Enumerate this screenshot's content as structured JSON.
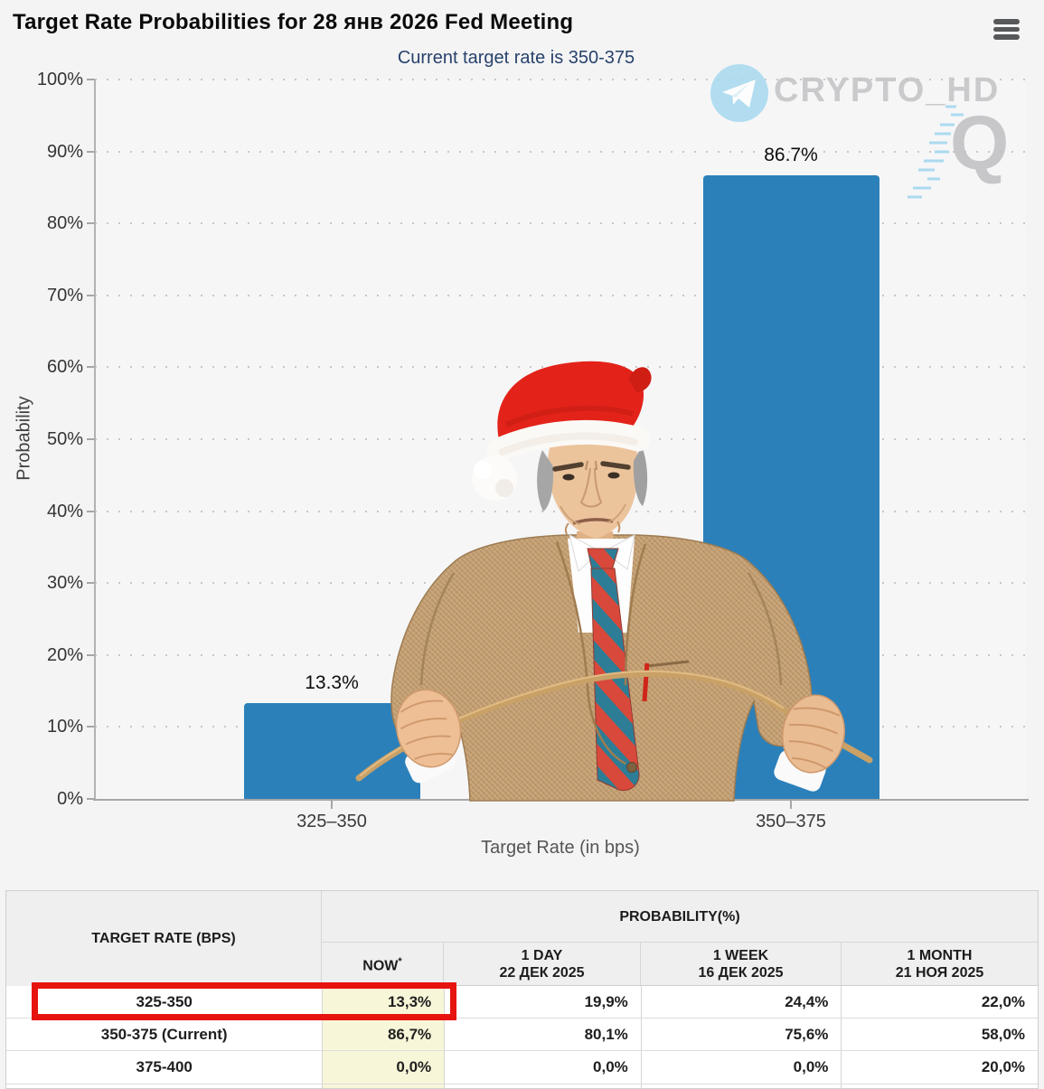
{
  "header": {
    "title": "Target Rate Probabilities for 28 янв 2026 Fed Meeting",
    "menu_icon": "hamburger-icon"
  },
  "chart_data": {
    "type": "bar",
    "title": "Target Rate Probabilities for 28 янв 2026 Fed Meeting",
    "subtitle": "Current target rate is 350-375",
    "categories": [
      "325–350",
      "350–375"
    ],
    "values": [
      13.3,
      86.7
    ],
    "bar_labels": [
      "13.3%",
      "86.7%"
    ],
    "xlabel": "Target Rate (in bps)",
    "ylabel": "Probability",
    "ylim": [
      0,
      100
    ],
    "ytick_step": 10,
    "ytick_suffix": "%",
    "grid": "dotted-horizontal",
    "legend": "none",
    "bar_color": "#2b80ba"
  },
  "watermark": {
    "telegram_icon": "telegram-icon",
    "text": "CRYPTO_HD",
    "q_text": "Q",
    "accent_color": "#a5d8ef"
  },
  "overlay_image": {
    "description": "Jerome Powell wearing a Santa hat, stern face, tan tweed suit, red and teal striped tie, bending a wooden switch with both fists"
  },
  "table": {
    "col1_header": "TARGET RATE (BPS)",
    "group_header": "PROBABILITY(%)",
    "columns": [
      {
        "label": "NOW",
        "sup": "*",
        "sub": ""
      },
      {
        "label": "1 DAY",
        "sub": "22 ДЕК 2025"
      },
      {
        "label": "1 WEEK",
        "sub": "16 ДЕК 2025"
      },
      {
        "label": "1 MONTH",
        "sub": "21 НОЯ 2025"
      }
    ],
    "rows": [
      {
        "rate": "325-350",
        "now": "13,3%",
        "day": "19,9%",
        "week": "24,4%",
        "month": "22,0%",
        "highlighted": true
      },
      {
        "rate": "350-375 (Current)",
        "now": "86,7%",
        "day": "80,1%",
        "week": "75,6%",
        "month": "58,0%",
        "highlighted": false
      },
      {
        "rate": "375-400",
        "now": "0,0%",
        "day": "0,0%",
        "week": "0,0%",
        "month": "20,0%",
        "highlighted": false
      }
    ],
    "now_cell_color": "#f8f6d8",
    "highlight_color": "#e6130e"
  }
}
